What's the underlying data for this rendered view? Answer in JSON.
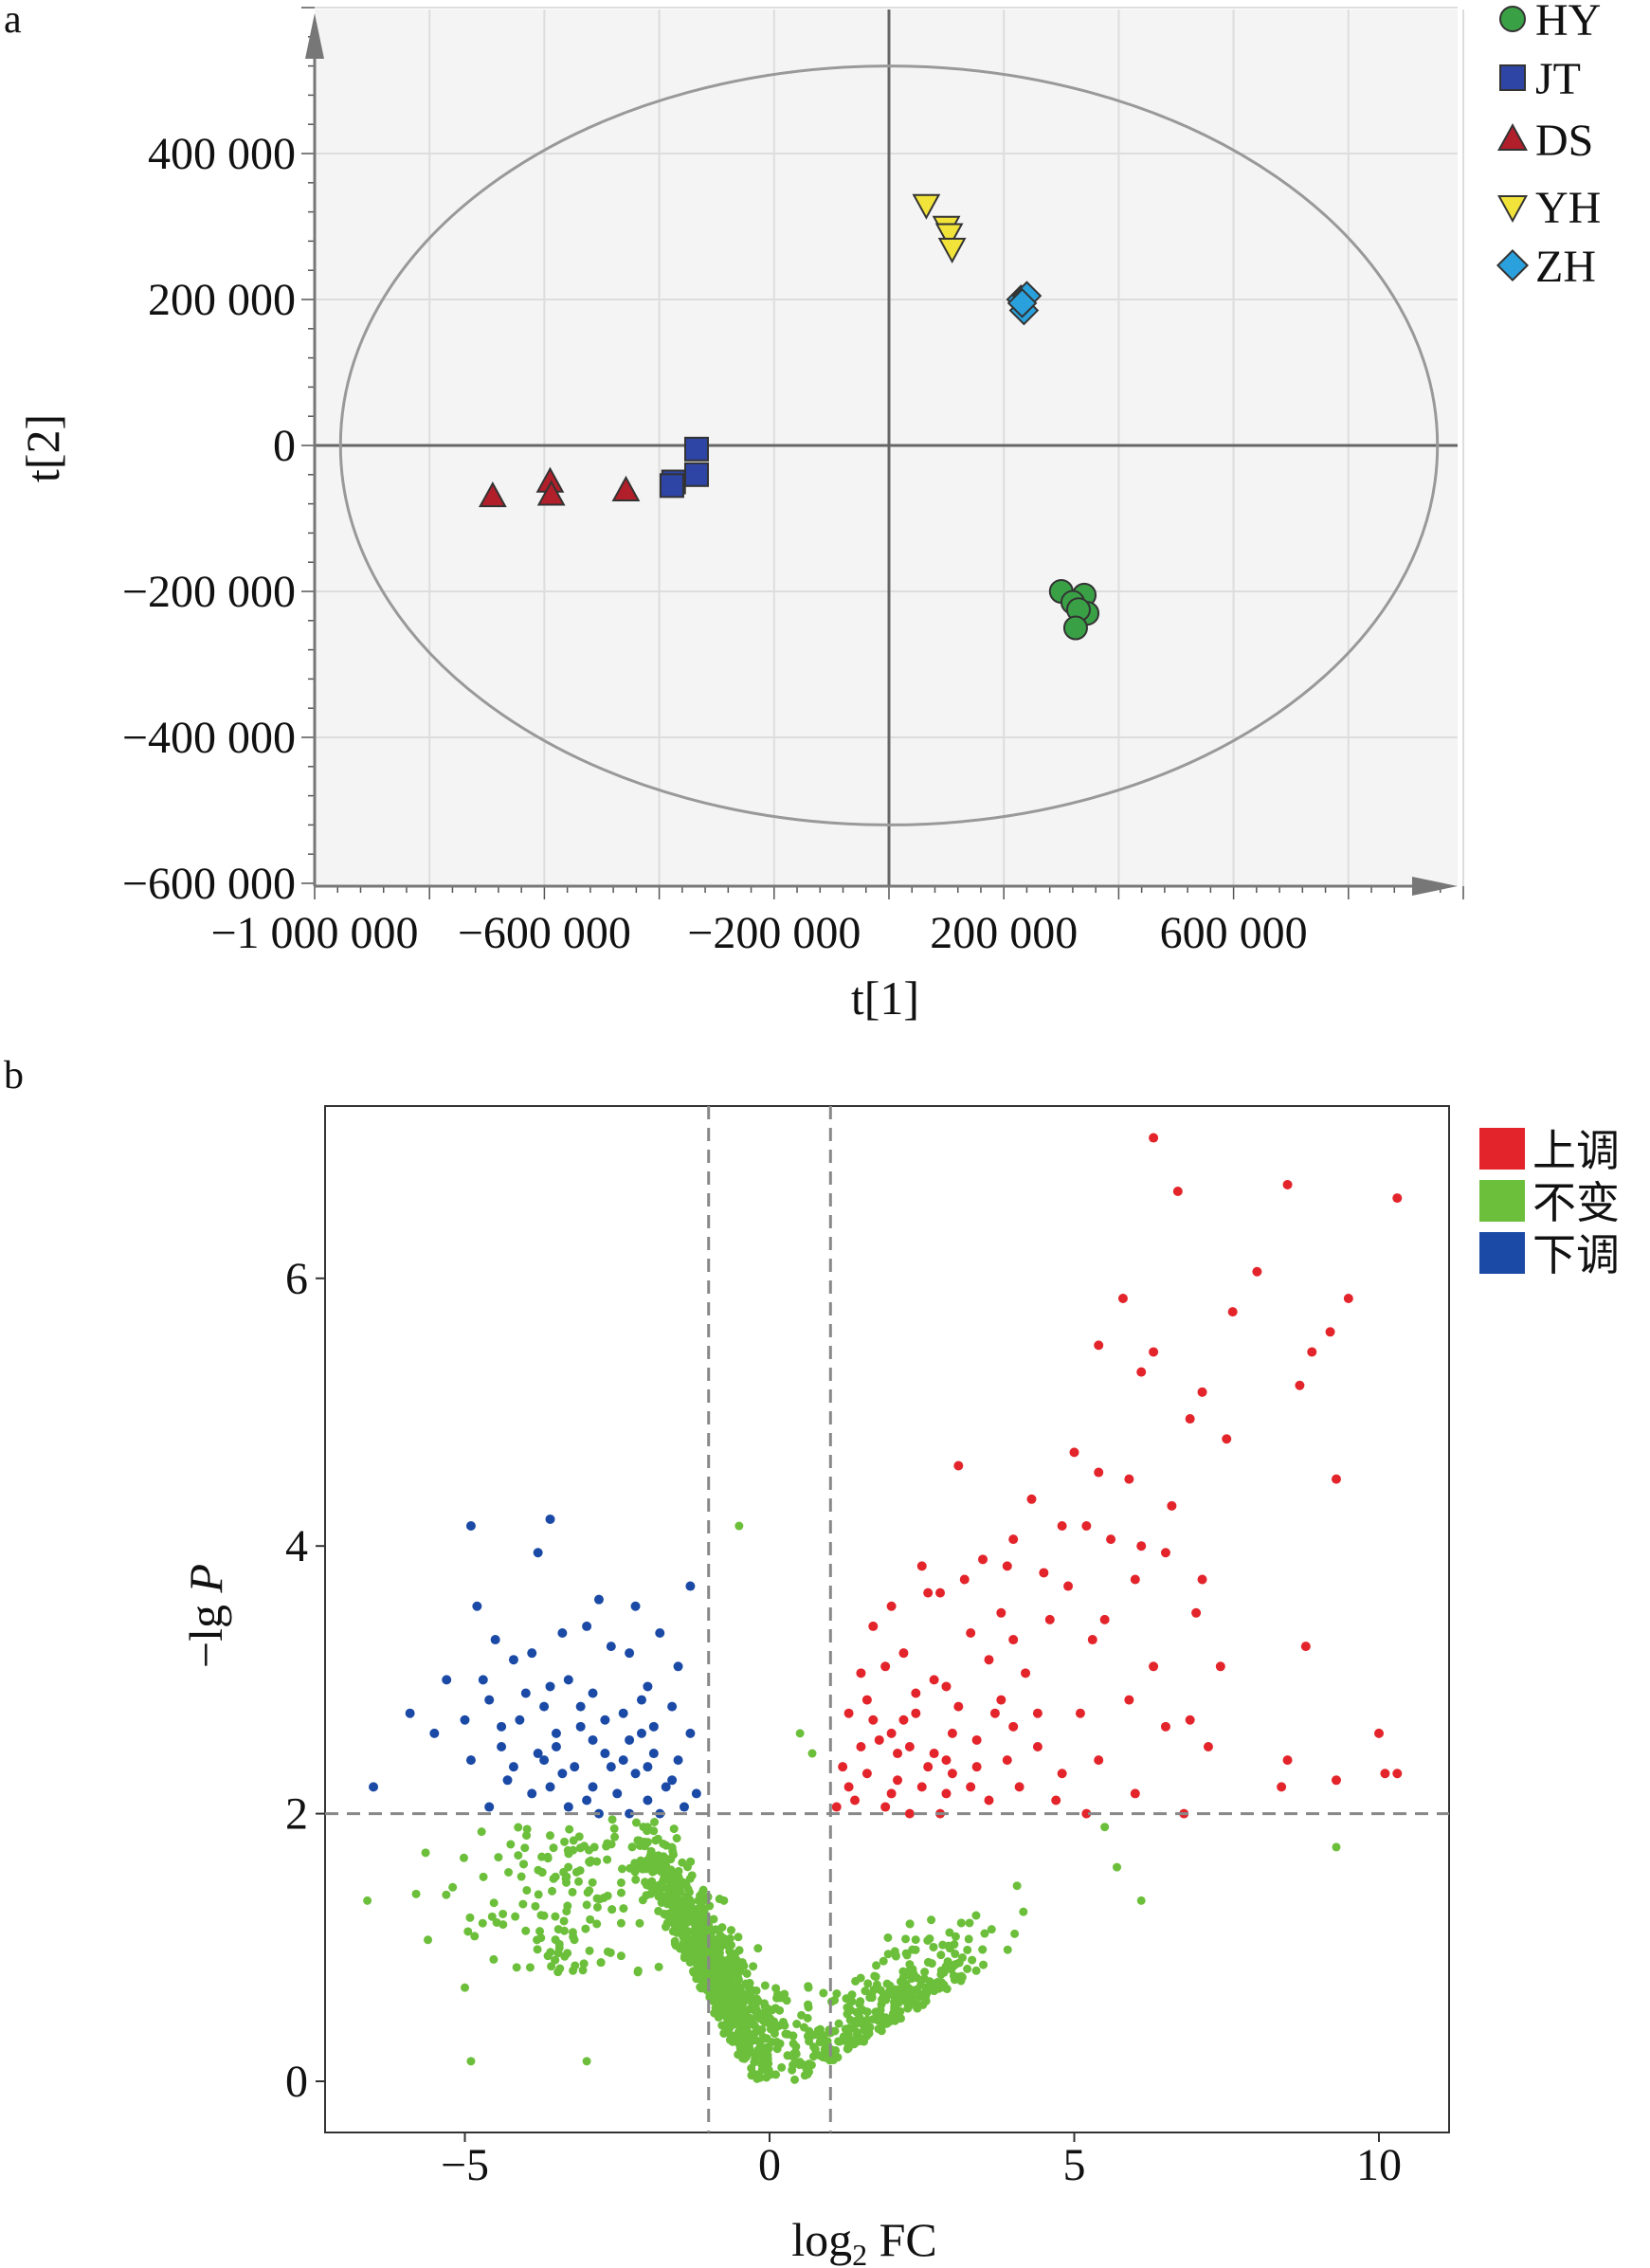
{
  "panel_a_label": "a",
  "panel_b_label": "b",
  "chart_data": [
    {
      "type": "scatter",
      "xlabel": "t[1]",
      "ylabel": "t[2]",
      "xlim": [
        -1000000,
        1000000
      ],
      "ylim": [
        -600000,
        600000
      ],
      "x_ticks": [
        -1000000,
        -600000,
        -200000,
        200000,
        600000
      ],
      "x_tick_labels": [
        "−1 000 000",
        "−600 000",
        "−200 000",
        "200 000",
        "600 000"
      ],
      "y_ticks": [
        400000,
        200000,
        0,
        -200000,
        -400000,
        -600000
      ],
      "y_tick_labels": [
        "400 000",
        "200 000",
        "0",
        "−200 000",
        "−400 000",
        "−600 000"
      ],
      "grid": true,
      "legend_position": "right",
      "ellipse": {
        "center": [
          0,
          0
        ],
        "rx": 955000,
        "ry": 520000
      },
      "series": [
        {
          "name": "HY",
          "marker": "circle",
          "color": "#3aa046",
          "points": [
            [
              300000,
              -200000
            ],
            [
              340000,
              -205000
            ],
            [
              320000,
              -215000
            ],
            [
              345000,
              -230000
            ],
            [
              330000,
              -225000
            ],
            [
              325000,
              -250000
            ]
          ]
        },
        {
          "name": "JT",
          "marker": "square",
          "color": "#2e45a5",
          "points": [
            [
              -335000,
              -5000
            ],
            [
              -335000,
              -40000
            ],
            [
              -375000,
              -50000
            ],
            [
              -378000,
              -55000
            ]
          ]
        },
        {
          "name": "DS",
          "marker": "triangle-up",
          "color": "#b01f2a",
          "points": [
            [
              -690000,
              -70000
            ],
            [
              -590000,
              -50000
            ],
            [
              -588000,
              -68000
            ],
            [
              -458000,
              -62000
            ]
          ]
        },
        {
          "name": "YH",
          "marker": "triangle-down",
          "color": "#f2e33a",
          "points": [
            [
              65000,
              330000
            ],
            [
              100000,
              300000
            ],
            [
              105000,
              290000
            ],
            [
              110000,
              270000
            ]
          ]
        },
        {
          "name": "ZH",
          "marker": "diamond",
          "color": "#2aa1dc",
          "points": [
            [
              230000,
              200000
            ],
            [
              235000,
              185000
            ],
            [
              240000,
              205000
            ],
            [
              232000,
              195000
            ]
          ]
        }
      ]
    },
    {
      "type": "scatter",
      "xlabel": "log2 FC",
      "xlabel_main": "log",
      "xlabel_sub": "2",
      "xlabel_rest": " FC",
      "ylabel": "−lg P",
      "ylabel_main": "−lg ",
      "ylabel_italic": "P",
      "xlim": [
        -7.3,
        11.1
      ],
      "ylim": [
        -0.35,
        7.3
      ],
      "x_ticks": [
        -5,
        0,
        5,
        10
      ],
      "x_tick_labels": [
        "−5",
        "0",
        "5",
        "10"
      ],
      "y_ticks": [
        0,
        2,
        4,
        6
      ],
      "y_tick_labels": [
        "0",
        "2",
        "4",
        "6"
      ],
      "grid": false,
      "legend_position": "right",
      "thresholds": {
        "x": [
          -1,
          1
        ],
        "y": 2
      },
      "series": [
        {
          "name": "上调",
          "color": "#e3242b",
          "points": [
            [
              6.3,
              7.05
            ],
            [
              6.7,
              6.65
            ],
            [
              8.5,
              6.7
            ],
            [
              10.3,
              6.6
            ],
            [
              8.0,
              6.05
            ],
            [
              7.6,
              5.75
            ],
            [
              5.8,
              5.85
            ],
            [
              9.5,
              5.85
            ],
            [
              9.2,
              5.6
            ],
            [
              8.9,
              5.45
            ],
            [
              5.4,
              5.5
            ],
            [
              6.3,
              5.45
            ],
            [
              6.1,
              5.3
            ],
            [
              7.1,
              5.15
            ],
            [
              8.7,
              5.2
            ],
            [
              6.9,
              4.95
            ],
            [
              7.5,
              4.8
            ],
            [
              5.0,
              4.7
            ],
            [
              3.1,
              4.6
            ],
            [
              5.4,
              4.55
            ],
            [
              5.9,
              4.5
            ],
            [
              9.3,
              4.5
            ],
            [
              6.6,
              4.3
            ],
            [
              4.3,
              4.35
            ],
            [
              4.8,
              4.15
            ],
            [
              5.2,
              4.15
            ],
            [
              4.0,
              4.05
            ],
            [
              5.6,
              4.05
            ],
            [
              6.1,
              4.0
            ],
            [
              6.5,
              3.95
            ],
            [
              2.5,
              3.85
            ],
            [
              3.5,
              3.9
            ],
            [
              3.9,
              3.85
            ],
            [
              4.5,
              3.8
            ],
            [
              6.0,
              3.75
            ],
            [
              7.1,
              3.75
            ],
            [
              3.2,
              3.75
            ],
            [
              4.9,
              3.7
            ],
            [
              2.8,
              3.65
            ],
            [
              2.0,
              3.55
            ],
            [
              2.6,
              3.65
            ],
            [
              3.8,
              3.5
            ],
            [
              4.6,
              3.45
            ],
            [
              5.5,
              3.45
            ],
            [
              7.0,
              3.5
            ],
            [
              3.3,
              3.35
            ],
            [
              1.7,
              3.4
            ],
            [
              4.0,
              3.3
            ],
            [
              5.3,
              3.3
            ],
            [
              6.3,
              3.1
            ],
            [
              7.4,
              3.1
            ],
            [
              8.8,
              3.25
            ],
            [
              2.2,
              3.2
            ],
            [
              3.6,
              3.15
            ],
            [
              4.2,
              3.05
            ],
            [
              2.9,
              2.95
            ],
            [
              1.5,
              3.05
            ],
            [
              1.9,
              3.1
            ],
            [
              2.4,
              2.9
            ],
            [
              3.1,
              2.8
            ],
            [
              3.8,
              2.85
            ],
            [
              4.4,
              2.75
            ],
            [
              5.1,
              2.75
            ],
            [
              5.9,
              2.85
            ],
            [
              6.5,
              2.65
            ],
            [
              6.9,
              2.7
            ],
            [
              7.2,
              2.5
            ],
            [
              1.3,
              2.75
            ],
            [
              1.7,
              2.7
            ],
            [
              2.0,
              2.6
            ],
            [
              2.3,
              2.5
            ],
            [
              2.7,
              2.45
            ],
            [
              3.0,
              2.6
            ],
            [
              3.4,
              2.55
            ],
            [
              3.9,
              2.4
            ],
            [
              4.4,
              2.5
            ],
            [
              4.8,
              2.3
            ],
            [
              5.4,
              2.4
            ],
            [
              1.2,
              2.35
            ],
            [
              1.6,
              2.3
            ],
            [
              2.1,
              2.25
            ],
            [
              2.5,
              2.2
            ],
            [
              2.9,
              2.15
            ],
            [
              3.3,
              2.2
            ],
            [
              3.6,
              2.1
            ],
            [
              4.1,
              2.2
            ],
            [
              4.7,
              2.1
            ],
            [
              5.2,
              2.0
            ],
            [
              1.4,
              2.1
            ],
            [
              1.9,
              2.05
            ],
            [
              2.3,
              2.0
            ],
            [
              2.8,
              2.0
            ],
            [
              1.1,
              2.05
            ],
            [
              10.0,
              2.6
            ],
            [
              10.3,
              2.3
            ],
            [
              10.1,
              2.3
            ],
            [
              8.5,
              2.4
            ],
            [
              8.4,
              2.2
            ],
            [
              9.3,
              2.25
            ],
            [
              6.8,
              2.0
            ],
            [
              6.0,
              2.15
            ],
            [
              2.6,
              2.35
            ],
            [
              2.1,
              2.45
            ],
            [
              1.8,
              2.55
            ],
            [
              3.4,
              2.35
            ],
            [
              2.2,
              2.7
            ],
            [
              1.5,
              2.5
            ],
            [
              2.9,
              2.4
            ],
            [
              1.3,
              2.2
            ],
            [
              2.0,
              2.15
            ],
            [
              4.0,
              2.65
            ],
            [
              3.7,
              2.75
            ],
            [
              1.6,
              2.85
            ],
            [
              2.4,
              2.75
            ],
            [
              2.7,
              3.0
            ],
            [
              3.0,
              2.3
            ]
          ]
        },
        {
          "name": "不变",
          "color": "#6cbf3b",
          "generated_count": 1400
        },
        {
          "name": "下调",
          "color": "#1b4aa6",
          "points": [
            [
              -4.9,
              4.15
            ],
            [
              -3.6,
              4.2
            ],
            [
              -3.8,
              3.95
            ],
            [
              -1.3,
              3.7
            ],
            [
              -2.8,
              3.6
            ],
            [
              -2.2,
              3.55
            ],
            [
              -4.8,
              3.55
            ],
            [
              -3.0,
              3.4
            ],
            [
              -4.5,
              3.3
            ],
            [
              -3.4,
              3.35
            ],
            [
              -1.8,
              3.35
            ],
            [
              -2.6,
              3.25
            ],
            [
              -3.9,
              3.2
            ],
            [
              -2.3,
              3.2
            ],
            [
              -4.2,
              3.15
            ],
            [
              -1.5,
              3.1
            ],
            [
              -5.3,
              3.0
            ],
            [
              -3.3,
              3.0
            ],
            [
              -2.0,
              2.95
            ],
            [
              -2.9,
              2.9
            ],
            [
              -4.6,
              2.85
            ],
            [
              -3.7,
              2.8
            ],
            [
              -5.9,
              2.75
            ],
            [
              -1.6,
              2.8
            ],
            [
              -2.4,
              2.75
            ],
            [
              -4.1,
              2.7
            ],
            [
              -5.5,
              2.6
            ],
            [
              -3.1,
              2.65
            ],
            [
              -2.1,
              2.6
            ],
            [
              -4.4,
              2.5
            ],
            [
              -3.5,
              2.5
            ],
            [
              -1.9,
              2.45
            ],
            [
              -2.7,
              2.45
            ],
            [
              -4.9,
              2.4
            ],
            [
              -3.2,
              2.35
            ],
            [
              -2.2,
              2.3
            ],
            [
              -6.5,
              2.2
            ],
            [
              -4.3,
              2.25
            ],
            [
              -3.6,
              2.2
            ],
            [
              -2.9,
              2.2
            ],
            [
              -1.7,
              2.2
            ],
            [
              -2.5,
              2.15
            ],
            [
              -3.9,
              2.15
            ],
            [
              -2.0,
              2.1
            ],
            [
              -3.3,
              2.05
            ],
            [
              -1.4,
              2.05
            ],
            [
              -2.8,
              2.0
            ],
            [
              -2.3,
              2.0
            ],
            [
              -1.8,
              2.0
            ],
            [
              -4.6,
              2.05
            ],
            [
              -3.0,
              2.1
            ],
            [
              -2.6,
              2.35
            ],
            [
              -1.5,
              2.4
            ],
            [
              -3.8,
              2.45
            ],
            [
              -4.0,
              2.9
            ],
            [
              -2.3,
              2.55
            ],
            [
              -1.3,
              2.6
            ],
            [
              -2.9,
              2.55
            ],
            [
              -5.0,
              2.7
            ],
            [
              -3.5,
              2.6
            ],
            [
              -4.7,
              3.0
            ],
            [
              -2.1,
              2.85
            ],
            [
              -3.6,
              2.95
            ],
            [
              -1.9,
              2.65
            ],
            [
              -2.7,
              2.7
            ],
            [
              -3.4,
              2.3
            ],
            [
              -1.6,
              2.25
            ],
            [
              -4.2,
              2.35
            ],
            [
              -2.4,
              2.4
            ],
            [
              -1.2,
              2.15
            ],
            [
              -3.1,
              2.8
            ],
            [
              -2.0,
              2.35
            ],
            [
              -4.4,
              2.65
            ],
            [
              -3.7,
              2.4
            ]
          ]
        }
      ]
    }
  ]
}
